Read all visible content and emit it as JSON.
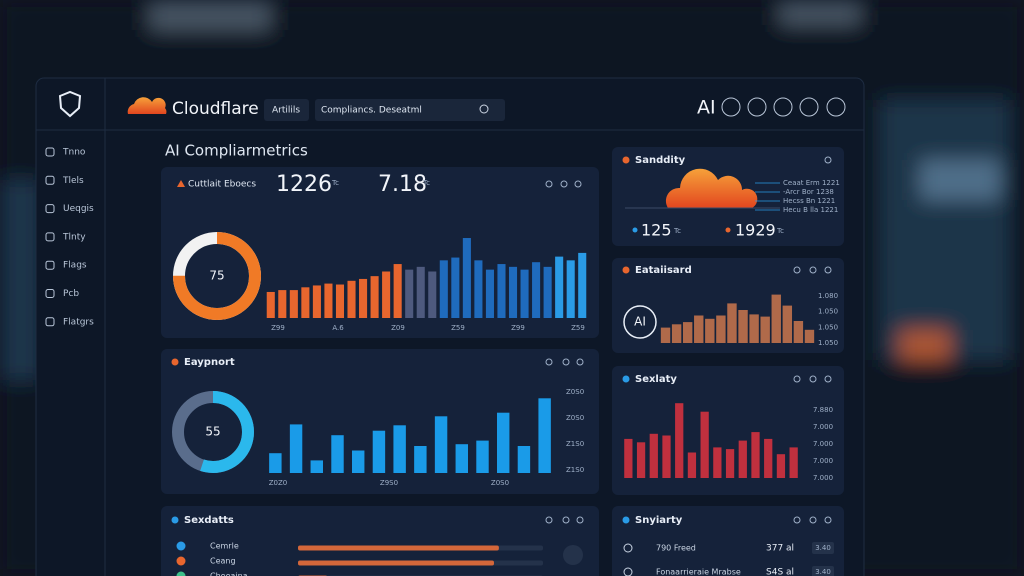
{
  "sidebar": {
    "items": [
      "Tnno",
      "Tlels",
      "Ueqgis",
      "Tlnty",
      "Flags",
      "Pcb",
      "Flatgrs"
    ]
  },
  "header": {
    "brand": "Cloudflare",
    "tab": "Artilils",
    "search": "Compliancs. Deseatml",
    "badge": "AI"
  },
  "page_title": "AI Compliarmetrics",
  "overview": {
    "tag": "Cuttlait Eboecs",
    "stats": [
      {
        "value": "1226",
        "unit": "Tc"
      },
      {
        "value": "7.18",
        "unit": "Tc"
      }
    ],
    "donut": {
      "value": 75,
      "color": "#f07a26"
    },
    "chart": {
      "type": "bar",
      "ylim": [
        0,
        100
      ],
      "series": [
        {
          "color": "#e8662e",
          "values": [
            28,
            30,
            30,
            33,
            35,
            37,
            36,
            40,
            42,
            45,
            50,
            58
          ]
        },
        {
          "color": "#4e5a7e",
          "values": [
            52,
            55,
            50
          ]
        },
        {
          "color": "#1f6bbd",
          "values": [
            62,
            65,
            86,
            62,
            52,
            58,
            55,
            52,
            60,
            55
          ]
        },
        {
          "color": "#2a9be6",
          "values": [
            66,
            62,
            70
          ]
        }
      ]
    },
    "x_labels": [
      "Z99",
      "A.6",
      "Z09",
      "Z59",
      "Z99",
      "Z59"
    ]
  },
  "export": {
    "title": "Eaypnort",
    "donut": {
      "value": 55,
      "color": "#2bb8ec"
    },
    "chart": {
      "type": "bar",
      "ylim": [
        0,
        100
      ],
      "color": "#1a9be8",
      "values": [
        22,
        54,
        14,
        42,
        25,
        47,
        53,
        30,
        63,
        32,
        36,
        67,
        30,
        83
      ]
    },
    "x_labels": [
      "Z0Z0",
      "Z9S0",
      "Z0S0"
    ],
    "y_labels": [
      "Z0S0",
      "Z0S0",
      "Z1S0",
      "Z1S0"
    ]
  },
  "details": {
    "title": "Sexdatts",
    "rows": [
      "Cemrle",
      "Ceang",
      "Cheeaina"
    ],
    "chart": {
      "type": "hbar",
      "xlim": [
        0,
        100
      ],
      "color": "#d4673a",
      "values": [
        82,
        80,
        12
      ]
    }
  },
  "security": {
    "title": "Sanddity",
    "legend": [
      "Ceaat Erm 1221",
      "-Arcr Bor 1238",
      "Hecss Bn 1221",
      "Hecu B lla 1221"
    ],
    "stats": [
      {
        "value": "125",
        "unit": "Tc"
      },
      {
        "value": "1929",
        "unit": "Tc"
      }
    ]
  },
  "dashboard": {
    "title": "Eataiisard",
    "badge": "AI",
    "y_labels": [
      "1.080",
      "1.050",
      "1.050",
      "1.050"
    ],
    "chart": {
      "type": "bar",
      "ylim": [
        0,
        100
      ],
      "color": "#b06a4a",
      "values": [
        28,
        34,
        38,
        50,
        44,
        50,
        72,
        60,
        52,
        48,
        88,
        68,
        40,
        24
      ]
    }
  },
  "safety": {
    "title": "Sexlaty",
    "y_labels": [
      "7.880",
      "7.000",
      "7.000",
      "7.000",
      "7.000"
    ],
    "chart": {
      "type": "bar",
      "ylim": [
        0,
        100
      ],
      "color": "#c0303e",
      "values": [
        46,
        42,
        52,
        50,
        88,
        30,
        78,
        36,
        34,
        44,
        54,
        46,
        28,
        36
      ]
    }
  },
  "summary": {
    "title": "Snyiarty",
    "rows": [
      {
        "label": "790 Freed",
        "value": "377 al",
        "badge": "3.40"
      },
      {
        "label": "Fonaarrieraie Mrabse",
        "value": "S4S al",
        "badge": "3.40"
      }
    ]
  }
}
